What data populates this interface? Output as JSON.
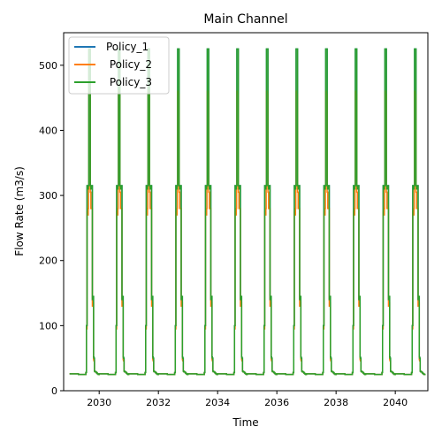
{
  "chart_data": {
    "type": "line",
    "title": "Main Channel",
    "xlabel": "Time",
    "ylabel": "Flow Rate (m3/s)",
    "xlim": [
      2028.8,
      2041.1
    ],
    "ylim": [
      0,
      550
    ],
    "xticks": [
      2030,
      2032,
      2034,
      2036,
      2038,
      2040
    ],
    "yticks": [
      0,
      100,
      200,
      300,
      400,
      500
    ],
    "grid": false,
    "legend_position": "top-left",
    "cycle": {
      "start_year": 2029,
      "years": 12,
      "profile_t": [
        0.0,
        0.3,
        0.54,
        0.55,
        0.57,
        0.59,
        0.61,
        0.63,
        0.64,
        0.65,
        0.67,
        0.7,
        0.72,
        0.75,
        0.77,
        0.79,
        0.81,
        0.82,
        0.84,
        0.86,
        0.88,
        0.9,
        0.92,
        0.94,
        0.95,
        0.97,
        1.0
      ]
    },
    "series": [
      {
        "name": "Policy_1",
        "color": "#1f77b4",
        "profile_y": [
          26,
          25,
          25,
          28,
          100,
          315,
          310,
          315,
          315,
          525,
          525,
          315,
          310,
          315,
          140,
          145,
          52,
          50,
          30,
          29,
          29,
          28,
          27,
          26,
          26,
          25,
          26
        ]
      },
      {
        "name": " Policy_2",
        "color": "#ff7f0e",
        "profile_y": [
          26,
          25,
          25,
          28,
          95,
          275,
          270,
          280,
          310,
          460,
          455,
          305,
          280,
          280,
          130,
          135,
          48,
          46,
          30,
          29,
          29,
          28,
          27,
          26,
          26,
          25,
          26
        ]
      },
      {
        "name": " Policy_3",
        "color": "#2ca02c",
        "profile_y": [
          26,
          25,
          25,
          28,
          100,
          315,
          310,
          315,
          315,
          525,
          525,
          315,
          310,
          315,
          140,
          145,
          52,
          50,
          30,
          29,
          29,
          28,
          27,
          26,
          26,
          25,
          26
        ]
      }
    ]
  }
}
